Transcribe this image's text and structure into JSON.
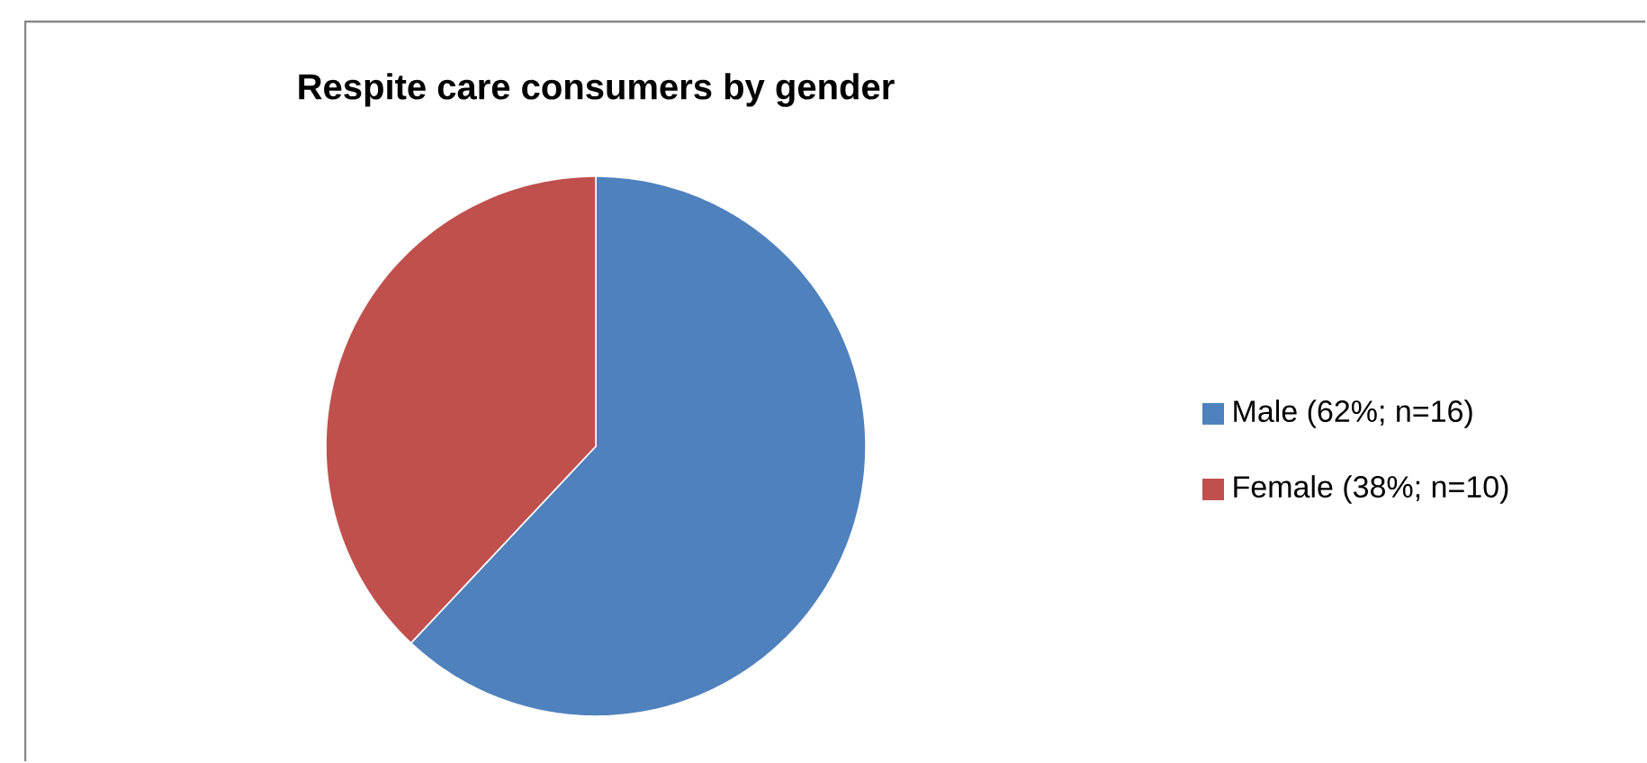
{
  "chart_data": {
    "type": "pie",
    "title": "Respite care consumers by gender",
    "categories": [
      "Male (62%; n=16)",
      "Female (38%; n=10)"
    ],
    "values": [
      62,
      38
    ],
    "colors": [
      "#4f81bd",
      "#c0504d"
    ],
    "legend": "right"
  }
}
